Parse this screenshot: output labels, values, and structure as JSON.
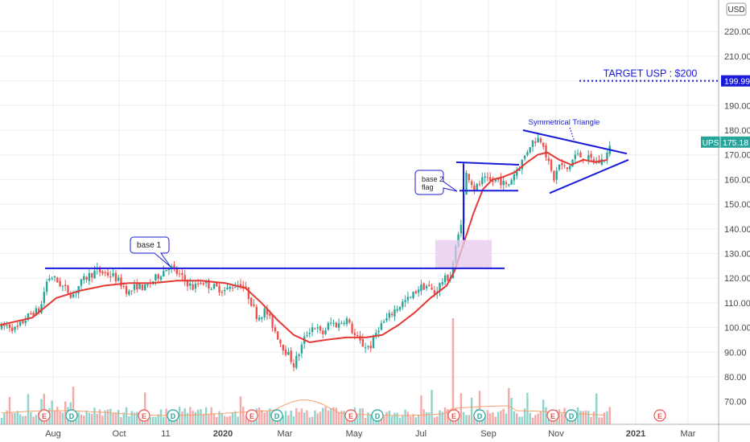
{
  "chart_data": {
    "type": "candlestick",
    "ticker": "UPS",
    "currency": "USD",
    "last_price": "175.18",
    "colors": {
      "up": "#26a69a",
      "down": "#ef5350",
      "ma": "#e53935",
      "ma_volume": "#f5a26f",
      "lines": "#1a1adb",
      "price_label": "#26a69a",
      "target_label": "#1a1adb",
      "rect_fill": "#e7c8ec",
      "grid": "#eeeeee"
    },
    "y_ticks": [
      "80.00",
      "90.00",
      "100.00",
      "110.00",
      "120.00",
      "130.00",
      "140.00",
      "150.00",
      "160.00",
      "170.00",
      "180.00",
      "190.00",
      "200.00",
      "210.00",
      "220.00"
    ],
    "ylim": [
      60,
      226
    ],
    "x_labels": [
      "Aug",
      "Oct",
      "11",
      "2020",
      "Mar",
      "May",
      "Jul",
      "Sep",
      "Nov",
      "2021",
      "Mar"
    ],
    "annotations": {
      "target_text": "TARGET USP : $200",
      "target_value": "199.99",
      "symmetrical_triangle": "Symmetrical Triangle",
      "base1": "base 1",
      "base2_line1": "base 2",
      "base2_line2": "flag"
    },
    "events": [
      "E",
      "D",
      "E",
      "D",
      "E",
      "D",
      "E",
      "D",
      "E",
      "D",
      "E",
      "D",
      "E"
    ],
    "price_path": [
      [
        0,
        100
      ],
      [
        10,
        101
      ],
      [
        20,
        99
      ],
      [
        30,
        103
      ],
      [
        40,
        106
      ],
      [
        50,
        107
      ],
      [
        57,
        118
      ],
      [
        63,
        121
      ],
      [
        70,
        119
      ],
      [
        80,
        116
      ],
      [
        90,
        113
      ],
      [
        100,
        118
      ],
      [
        110,
        121
      ],
      [
        120,
        123
      ],
      [
        130,
        122
      ],
      [
        140,
        121
      ],
      [
        150,
        118
      ],
      [
        160,
        114
      ],
      [
        170,
        117
      ],
      [
        180,
        116
      ],
      [
        190,
        119
      ],
      [
        200,
        122
      ],
      [
        210,
        125
      ],
      [
        220,
        122
      ],
      [
        230,
        119
      ],
      [
        240,
        116
      ],
      [
        250,
        119
      ],
      [
        260,
        117
      ],
      [
        270,
        116
      ],
      [
        280,
        115
      ],
      [
        290,
        117
      ],
      [
        300,
        118
      ],
      [
        310,
        112
      ],
      [
        320,
        104
      ],
      [
        330,
        107
      ],
      [
        340,
        100
      ],
      [
        350,
        93
      ],
      [
        360,
        88
      ],
      [
        365,
        85
      ],
      [
        372,
        90
      ],
      [
        380,
        97
      ],
      [
        390,
        101
      ],
      [
        400,
        97
      ],
      [
        410,
        102
      ],
      [
        420,
        101
      ],
      [
        430,
        104
      ],
      [
        440,
        97
      ],
      [
        450,
        93
      ],
      [
        460,
        92
      ],
      [
        470,
        100
      ],
      [
        480,
        103
      ],
      [
        490,
        107
      ],
      [
        500,
        110
      ],
      [
        510,
        112
      ],
      [
        520,
        116
      ],
      [
        530,
        117
      ],
      [
        540,
        114
      ],
      [
        550,
        119
      ],
      [
        560,
        121
      ],
      [
        565,
        130
      ],
      [
        570,
        138
      ],
      [
        575,
        147
      ],
      [
        577,
        158
      ],
      [
        580,
        163
      ],
      [
        590,
        156
      ],
      [
        600,
        160
      ],
      [
        610,
        159
      ],
      [
        620,
        160
      ],
      [
        630,
        157
      ],
      [
        640,
        163
      ],
      [
        650,
        168
      ],
      [
        660,
        175
      ],
      [
        670,
        177
      ],
      [
        675,
        175
      ],
      [
        680,
        168
      ],
      [
        688,
        160
      ],
      [
        695,
        166
      ],
      [
        705,
        164
      ],
      [
        715,
        170
      ],
      [
        725,
        169
      ],
      [
        735,
        168
      ],
      [
        745,
        167
      ],
      [
        752,
        169
      ],
      [
        760,
        174
      ]
    ],
    "ma_path": [
      [
        0,
        101
      ],
      [
        40,
        104
      ],
      [
        70,
        112
      ],
      [
        100,
        115
      ],
      [
        130,
        117
      ],
      [
        160,
        118
      ],
      [
        190,
        118
      ],
      [
        220,
        119
      ],
      [
        250,
        119
      ],
      [
        280,
        118
      ],
      [
        305,
        116
      ],
      [
        325,
        110
      ],
      [
        345,
        103
      ],
      [
        365,
        97
      ],
      [
        385,
        94
      ],
      [
        405,
        95
      ],
      [
        430,
        96
      ],
      [
        455,
        96
      ],
      [
        475,
        97
      ],
      [
        495,
        101
      ],
      [
        515,
        106
      ],
      [
        535,
        112
      ],
      [
        555,
        117
      ],
      [
        565,
        123
      ],
      [
        575,
        133
      ],
      [
        588,
        146
      ],
      [
        600,
        156
      ],
      [
        612,
        160
      ],
      [
        625,
        161
      ],
      [
        640,
        163
      ],
      [
        655,
        167
      ],
      [
        668,
        170
      ],
      [
        680,
        171
      ],
      [
        695,
        168
      ],
      [
        710,
        166
      ],
      [
        725,
        168
      ],
      [
        740,
        167
      ],
      [
        755,
        168
      ]
    ]
  }
}
